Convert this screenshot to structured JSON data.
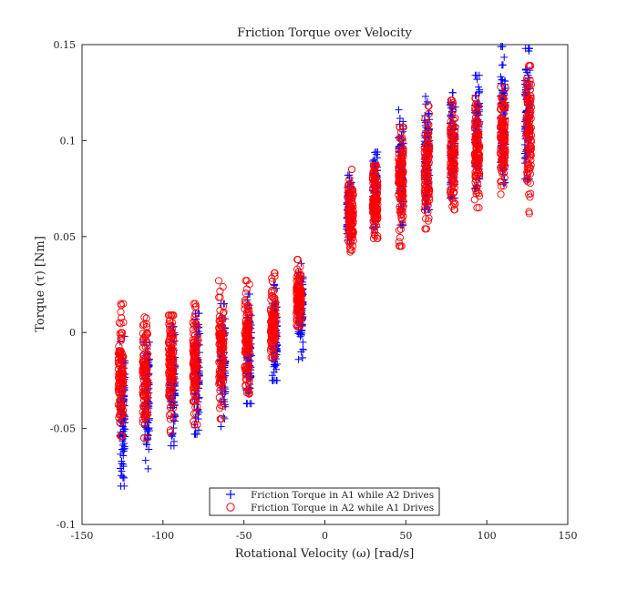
{
  "chart_data": {
    "type": "scatter",
    "title": "Friction Torque over Velocity",
    "xlabel": "Rotational Velocity (ω) [rad/s]",
    "ylabel": "Torque (τ) [Nm]",
    "xlim": [
      -150,
      150
    ],
    "ylim": [
      -0.1,
      0.15
    ],
    "xticks": [
      "-150",
      "-100",
      "-50",
      "0",
      "50",
      "100",
      "150"
    ],
    "yticks": [
      "-0.1",
      "-0.05",
      "0",
      "0.05",
      "0.1",
      "0.15"
    ],
    "grid": false,
    "legend_position": "bottom-center",
    "colors": {
      "series1": "#0000ff",
      "series2": "#ff0000"
    },
    "series": [
      {
        "name": "Friction Torque in A1 while A2 Drives",
        "marker": "plus",
        "clusters": [
          {
            "x": -125,
            "ymin": -0.08,
            "ymax": -0.002,
            "ymean": -0.04
          },
          {
            "x": -110,
            "ymin": -0.071,
            "ymax": -0.005,
            "ymean": -0.033
          },
          {
            "x": -94,
            "ymin": -0.059,
            "ymax": 0.003,
            "ymean": -0.025
          },
          {
            "x": -79,
            "ymin": -0.053,
            "ymax": 0.01,
            "ymean": -0.02
          },
          {
            "x": -63,
            "ymin": -0.049,
            "ymax": 0.015,
            "ymean": -0.015
          },
          {
            "x": -47,
            "ymin": -0.037,
            "ymax": 0.02,
            "ymean": -0.01
          },
          {
            "x": -31,
            "ymin": -0.025,
            "ymax": 0.025,
            "ymean": -0.002
          },
          {
            "x": -15,
            "ymin": -0.014,
            "ymax": 0.036,
            "ymean": 0.01
          },
          {
            "x": 15,
            "ymin": 0.048,
            "ymax": 0.082,
            "ymean": 0.064
          },
          {
            "x": 31,
            "ymin": 0.052,
            "ymax": 0.094,
            "ymean": 0.072
          },
          {
            "x": 47,
            "ymin": 0.056,
            "ymax": 0.116,
            "ymean": 0.083
          },
          {
            "x": 63,
            "ymin": 0.064,
            "ymax": 0.123,
            "ymean": 0.092
          },
          {
            "x": 79,
            "ymin": 0.07,
            "ymax": 0.125,
            "ymean": 0.098
          },
          {
            "x": 94,
            "ymin": 0.075,
            "ymax": 0.134,
            "ymean": 0.103
          },
          {
            "x": 110,
            "ymin": 0.078,
            "ymax": 0.149,
            "ymean": 0.108
          },
          {
            "x": 125,
            "ymin": 0.08,
            "ymax": 0.148,
            "ymean": 0.112
          }
        ]
      },
      {
        "name": "Friction Torque in A2 while A1 Drives",
        "marker": "circle",
        "clusters": [
          {
            "x": -126,
            "ymin": -0.054,
            "ymax": 0.015,
            "ymean": -0.024
          },
          {
            "x": -111,
            "ymin": -0.055,
            "ymax": 0.008,
            "ymean": -0.022
          },
          {
            "x": -95,
            "ymin": -0.052,
            "ymax": 0.009,
            "ymean": -0.019
          },
          {
            "x": -80,
            "ymin": -0.048,
            "ymax": 0.015,
            "ymean": -0.016
          },
          {
            "x": -64,
            "ymin": -0.045,
            "ymax": 0.027,
            "ymean": -0.01
          },
          {
            "x": -48,
            "ymin": -0.032,
            "ymax": 0.027,
            "ymean": -0.003
          },
          {
            "x": -32,
            "ymin": -0.013,
            "ymax": 0.031,
            "ymean": 0.005
          },
          {
            "x": -16,
            "ymin": 0.003,
            "ymax": 0.038,
            "ymean": 0.018
          },
          {
            "x": 16,
            "ymin": 0.042,
            "ymax": 0.085,
            "ymean": 0.062
          },
          {
            "x": 31,
            "ymin": 0.049,
            "ymax": 0.087,
            "ymean": 0.068
          },
          {
            "x": 47,
            "ymin": 0.045,
            "ymax": 0.107,
            "ymean": 0.077
          },
          {
            "x": 63,
            "ymin": 0.054,
            "ymax": 0.118,
            "ymean": 0.084
          },
          {
            "x": 79,
            "ymin": 0.064,
            "ymax": 0.121,
            "ymean": 0.092
          },
          {
            "x": 94,
            "ymin": 0.065,
            "ymax": 0.122,
            "ymean": 0.097
          },
          {
            "x": 110,
            "ymin": 0.072,
            "ymax": 0.128,
            "ymean": 0.101
          },
          {
            "x": 126,
            "ymin": 0.062,
            "ymax": 0.139,
            "ymean": 0.104
          }
        ]
      }
    ]
  }
}
